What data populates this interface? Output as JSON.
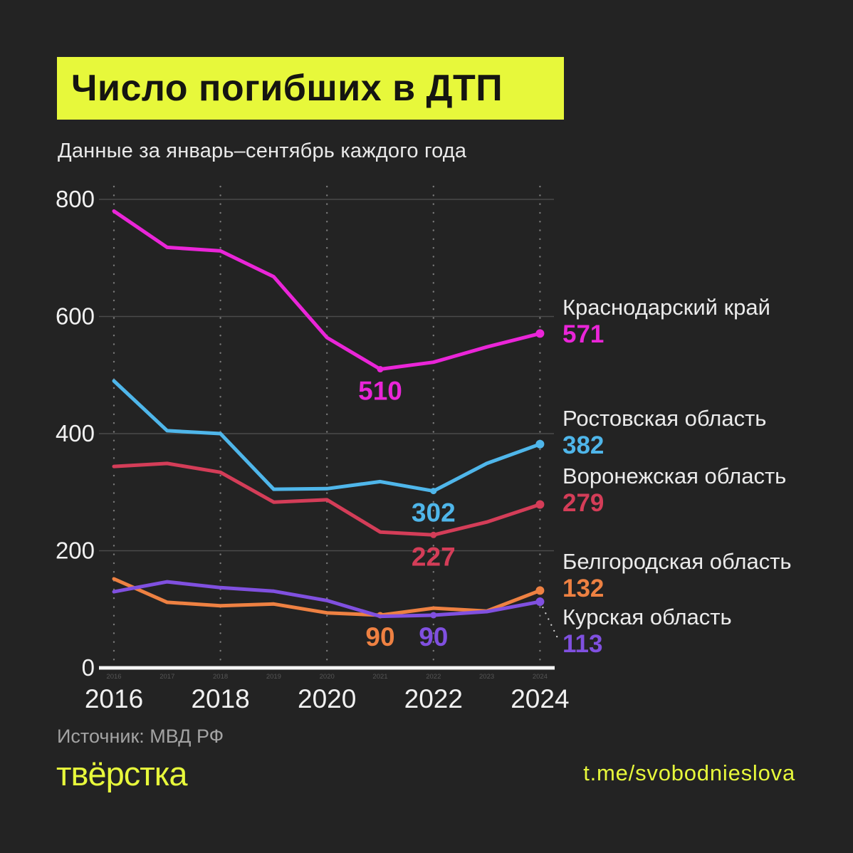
{
  "title": "Число погибших в ДТП",
  "subtitle": "Данные за январь–сентябрь каждого года",
  "source": "Источник: МВД РФ",
  "logo": "твёрстка",
  "telegram": "t.me/svobodnieslova",
  "colors": {
    "background": "#232323",
    "accent_yellow": "#e7f83b",
    "axis_white": "#f5f5f5",
    "gridline": "#4b4b4b",
    "dotted_line": "#7a7a7a",
    "tick_label": "#f1f1f1",
    "tiny_label": "#565656",
    "legend_name": "#ebebeb"
  },
  "chart_data": {
    "type": "line",
    "x": [
      2016,
      2017,
      2018,
      2019,
      2020,
      2021,
      2022,
      2023,
      2024
    ],
    "x_major_ticks": [
      "2016",
      "2018",
      "2020",
      "2022",
      "2024"
    ],
    "x_minor_labels": [
      "2016",
      "2017",
      "2018",
      "2019",
      "2020",
      "2021",
      "2022",
      "2023",
      "2024"
    ],
    "y_ticks": [
      0,
      200,
      400,
      600,
      800
    ],
    "ylim": [
      0,
      800
    ],
    "grid": "horizontal solid + vertical dotted at even years",
    "legend_position": "right",
    "series": [
      {
        "name": "Краснодарский край",
        "color": "#ea25d8",
        "values": [
          780,
          718,
          712,
          668,
          564,
          510,
          522,
          548,
          571
        ],
        "legend_value": "571",
        "annotation": {
          "year": 2021,
          "label": "510"
        }
      },
      {
        "name": "Ростовская область",
        "color": "#4fb6ea",
        "values": [
          490,
          405,
          400,
          305,
          306,
          318,
          302,
          349,
          382
        ],
        "legend_value": "382",
        "annotation": {
          "year": 2022,
          "label": "302"
        }
      },
      {
        "name": "Воронежская область",
        "color": "#d43d58",
        "values": [
          344,
          349,
          334,
          283,
          287,
          232,
          227,
          249,
          279
        ],
        "legend_value": "279",
        "annotation": {
          "year": 2022,
          "label": "227"
        }
      },
      {
        "name": "Белгородская область",
        "color": "#ee8142",
        "values": [
          152,
          112,
          106,
          109,
          94,
          90,
          102,
          97,
          132
        ],
        "legend_value": "132",
        "annotation": {
          "year": 2021,
          "label": "90"
        }
      },
      {
        "name": "Курская область",
        "color": "#8050e0",
        "values": [
          130,
          147,
          137,
          131,
          115,
          88,
          90,
          96,
          113
        ],
        "legend_value": "113",
        "annotation": {
          "year": 2022,
          "label": "90"
        }
      }
    ]
  }
}
